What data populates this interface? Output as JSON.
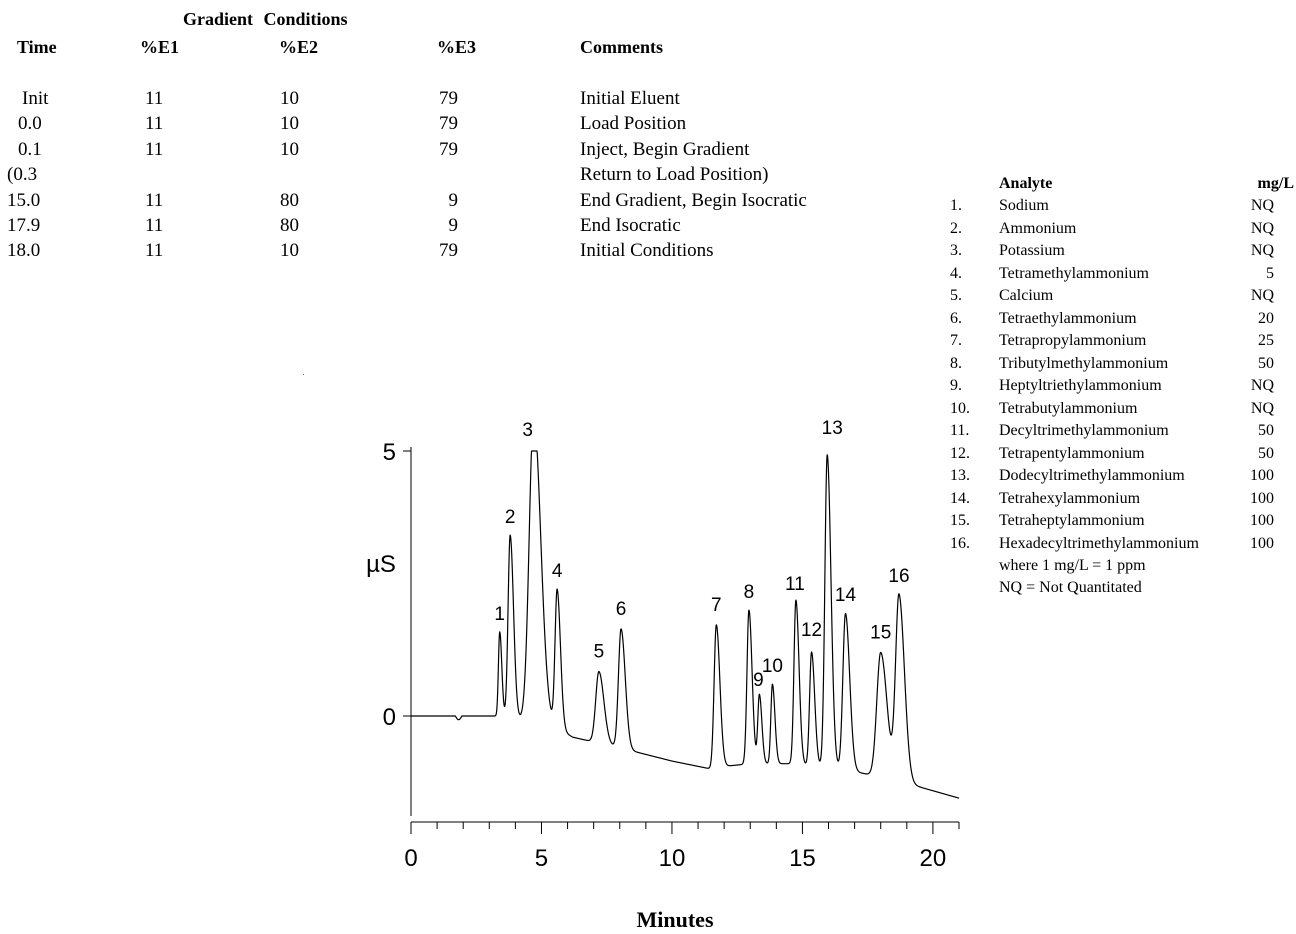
{
  "gradient": {
    "title": "Gradient Conditions",
    "headers": [
      "Time",
      "%E1",
      "%E2",
      "%E3",
      "Comments"
    ],
    "rows": [
      {
        "time": "Init",
        "e1": "11",
        "e2": "10",
        "e3": "79",
        "comment": "Initial Eluent"
      },
      {
        "time": "0.0",
        "e1": "11",
        "e2": "10",
        "e3": "79",
        "comment": "Load Position"
      },
      {
        "time": "0.1",
        "e1": "11",
        "e2": "10",
        "e3": "79",
        "comment": "Inject, Begin Gradient"
      },
      {
        "time": "(0.3",
        "e1": "",
        "e2": "",
        "e3": "",
        "comment": "Return to Load Position)"
      },
      {
        "time": "15.0",
        "e1": "11",
        "e2": "80",
        "e3": "9",
        "comment": "End Gradient, Begin Isocratic"
      },
      {
        "time": "17.9",
        "e1": "11",
        "e2": "80",
        "e3": "9",
        "comment": "End Isocratic"
      },
      {
        "time": "18.0",
        "e1": "11",
        "e2": "10",
        "e3": "79",
        "comment": "Initial Conditions"
      }
    ]
  },
  "legend": {
    "header_analyte": "Analyte",
    "header_conc": "mg/L",
    "items": [
      {
        "num": "1.",
        "name": "Sodium",
        "conc": "NQ"
      },
      {
        "num": "2.",
        "name": "Ammonium",
        "conc": "NQ"
      },
      {
        "num": "3.",
        "name": "Potassium",
        "conc": "NQ"
      },
      {
        "num": "4.",
        "name": "Tetramethylammonium",
        "conc": "5"
      },
      {
        "num": "5.",
        "name": "Calcium",
        "conc": "NQ"
      },
      {
        "num": "6.",
        "name": "Tetraethylammonium",
        "conc": "20"
      },
      {
        "num": "7.",
        "name": "Tetrapropylammonium",
        "conc": "25"
      },
      {
        "num": "8.",
        "name": "Tributylmethylammonium",
        "conc": "50"
      },
      {
        "num": "9.",
        "name": "Heptyltriethylammonium",
        "conc": "NQ"
      },
      {
        "num": "10.",
        "name": "Tetrabutylammonium",
        "conc": "NQ"
      },
      {
        "num": "11.",
        "name": "Decyltrimethylammonium",
        "conc": "50"
      },
      {
        "num": "12.",
        "name": "Tetrapentylammonium",
        "conc": "50"
      },
      {
        "num": "13.",
        "name": "Dodecyltrimethylammonium",
        "conc": "100"
      },
      {
        "num": "14.",
        "name": "Tetrahexylammonium",
        "conc": "100"
      },
      {
        "num": "15.",
        "name": "Tetraheptylammonium",
        "conc": "100"
      },
      {
        "num": "16.",
        "name": "Hexadecyltrimethylammonium",
        "conc": "100"
      }
    ],
    "notes": [
      "where 1 mg/L = 1 ppm",
      "NQ = Not Quantitated"
    ]
  },
  "chart_data": {
    "type": "line",
    "xlabel": "Minutes",
    "ylabel": "µS",
    "xlim": [
      0,
      21
    ],
    "ylim": [
      -1.9,
      5
    ],
    "xticks": [
      0,
      5,
      10,
      15,
      20
    ],
    "yticks": [
      0,
      5
    ],
    "grid": false,
    "baseline": [
      [
        0,
        0
      ],
      [
        3.2,
        0
      ],
      [
        4.0,
        -0.05
      ],
      [
        5.5,
        -0.2
      ],
      [
        6.2,
        -0.4
      ],
      [
        8.0,
        -0.6
      ],
      [
        10.0,
        -0.85
      ],
      [
        11.5,
        -1.0
      ],
      [
        12.0,
        -0.95
      ],
      [
        13.0,
        -0.9
      ],
      [
        14.5,
        -0.9
      ],
      [
        16.5,
        -1.0
      ],
      [
        18.5,
        -1.2
      ],
      [
        21,
        -1.55
      ]
    ],
    "peaks": [
      {
        "label": "1",
        "rt": 3.4,
        "height": 1.6,
        "width": 0.05
      },
      {
        "label": "2",
        "rt": 3.8,
        "height": 3.45,
        "width": 0.08
      },
      {
        "label": "3",
        "rt": 4.7,
        "height": 5.8,
        "width": 0.17
      },
      {
        "label": "4",
        "rt": 5.6,
        "height": 2.6,
        "width": 0.08
      },
      {
        "label": "5",
        "rt": 7.2,
        "height": 1.35,
        "width": 0.12
      },
      {
        "label": "6",
        "rt": 8.05,
        "height": 2.25,
        "width": 0.1
      },
      {
        "label": "7",
        "rt": 11.7,
        "height": 2.7,
        "width": 0.085
      },
      {
        "label": "8",
        "rt": 12.95,
        "height": 2.9,
        "width": 0.075
      },
      {
        "label": "9",
        "rt": 13.35,
        "height": 1.3,
        "width": 0.06
      },
      {
        "label": "10",
        "rt": 13.85,
        "height": 1.5,
        "width": 0.06
      },
      {
        "label": "11",
        "rt": 14.75,
        "height": 3.1,
        "width": 0.075
      },
      {
        "label": "12",
        "rt": 15.35,
        "height": 2.15,
        "width": 0.075
      },
      {
        "label": "13",
        "rt": 15.95,
        "height": 5.9,
        "width": 0.09
      },
      {
        "label": "14",
        "rt": 16.65,
        "height": 2.95,
        "width": 0.1
      },
      {
        "label": "15",
        "rt": 18.0,
        "height": 2.35,
        "width": 0.15
      },
      {
        "label": "16",
        "rt": 18.7,
        "height": 3.5,
        "width": 0.13
      }
    ]
  }
}
